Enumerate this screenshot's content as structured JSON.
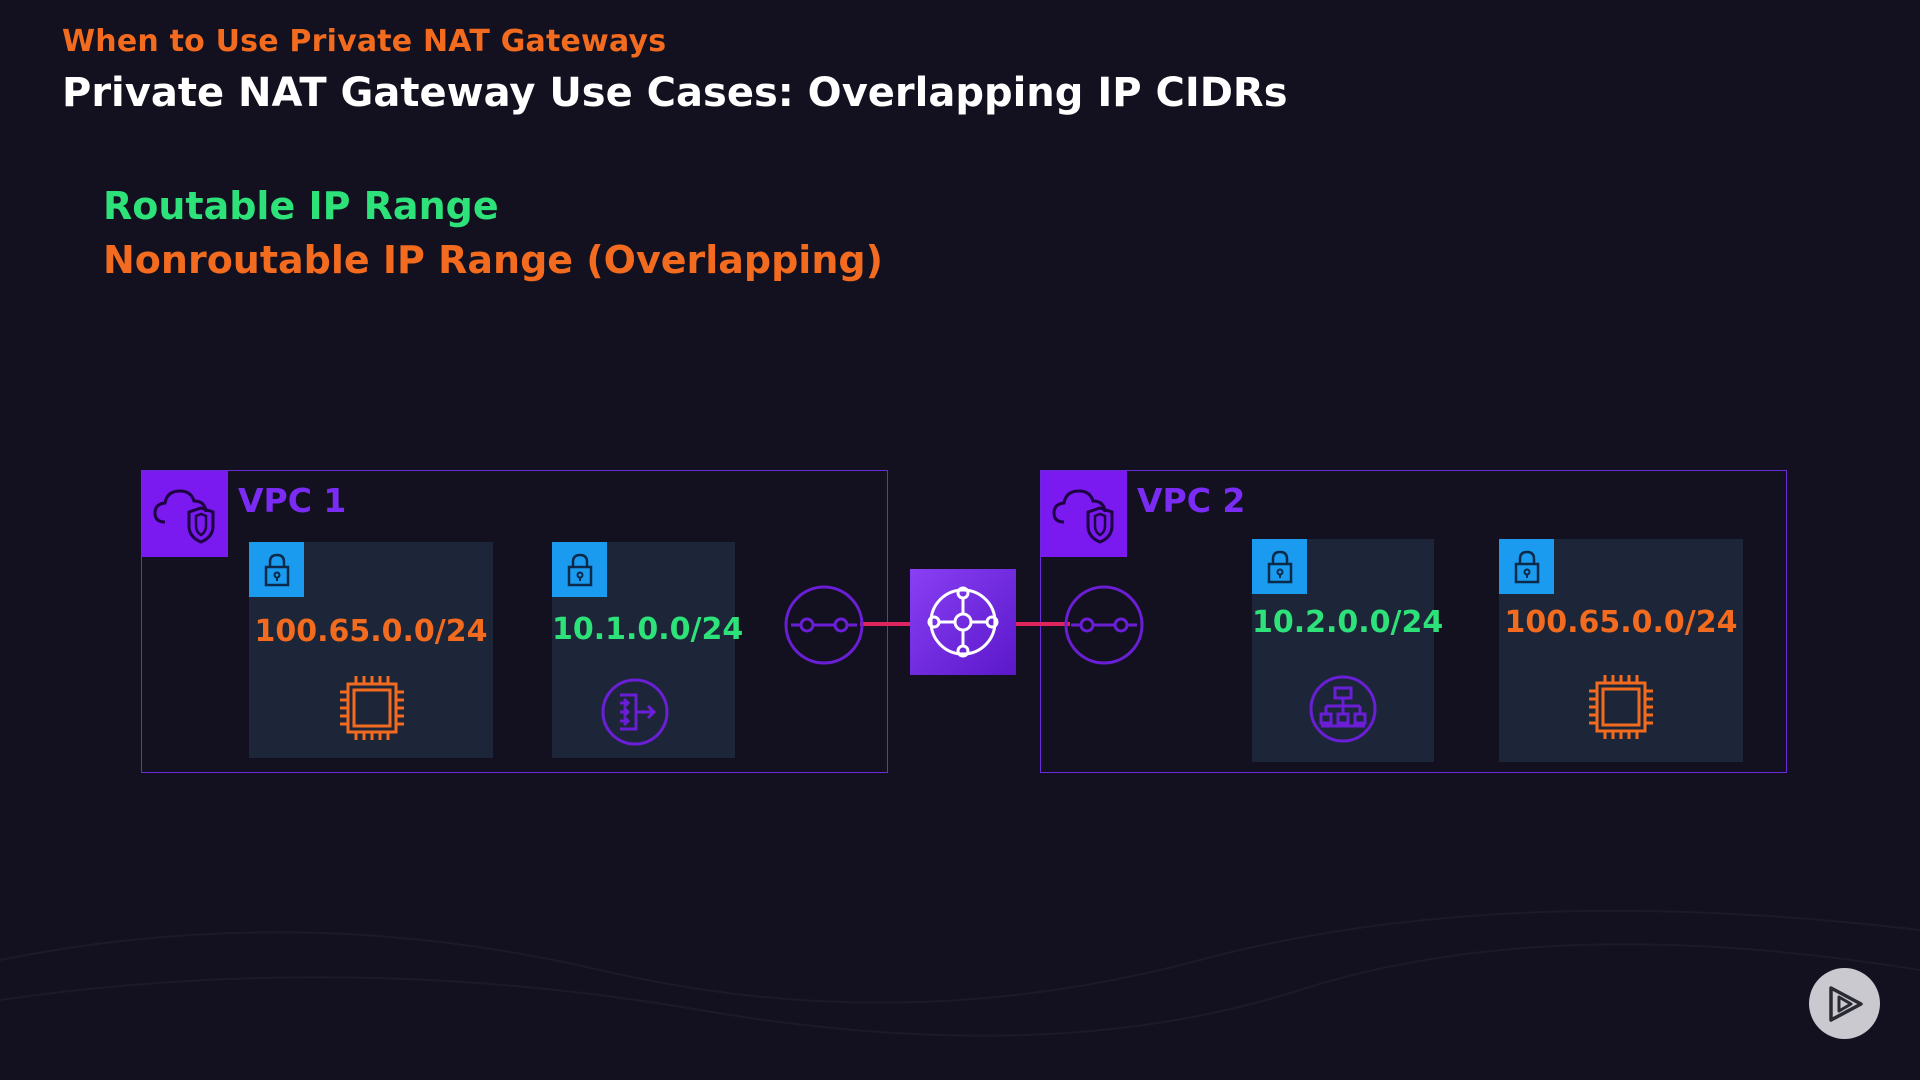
{
  "header": {
    "kicker": "When to Use Private NAT Gateways",
    "title": "Private NAT Gateway Use Cases: Overlapping IP CIDRs"
  },
  "legend": {
    "routable": "Routable IP Range",
    "nonroutable": "Nonroutable IP Range (Overlapping)"
  },
  "vpcs": [
    {
      "label": "VPC 1",
      "subnets": [
        {
          "cidr": "100.65.0.0/24",
          "range": "nonroutable",
          "resource": "ec2-instance-icon"
        },
        {
          "cidr": "10.1.0.0/24",
          "range": "routable",
          "resource": "nat-gateway-icon"
        }
      ]
    },
    {
      "label": "VPC 2",
      "subnets": [
        {
          "cidr": "10.2.0.0/24",
          "range": "routable",
          "resource": "load-balancer-icon"
        },
        {
          "cidr": "100.65.0.0/24",
          "range": "nonroutable",
          "resource": "ec2-instance-icon"
        }
      ]
    }
  ],
  "center": {
    "resource": "transit-gateway-icon",
    "attachments": "tgw-attachment-icon"
  },
  "colors": {
    "background": "#13111f",
    "orange": "#f26b1f",
    "green": "#2ee27a",
    "purple": "#7a19f0",
    "subnet_bg": "#1c2638",
    "lock_blue": "#1a9bf0",
    "link_pink": "#e0245e"
  },
  "controls": {
    "play_button": "play-icon"
  }
}
